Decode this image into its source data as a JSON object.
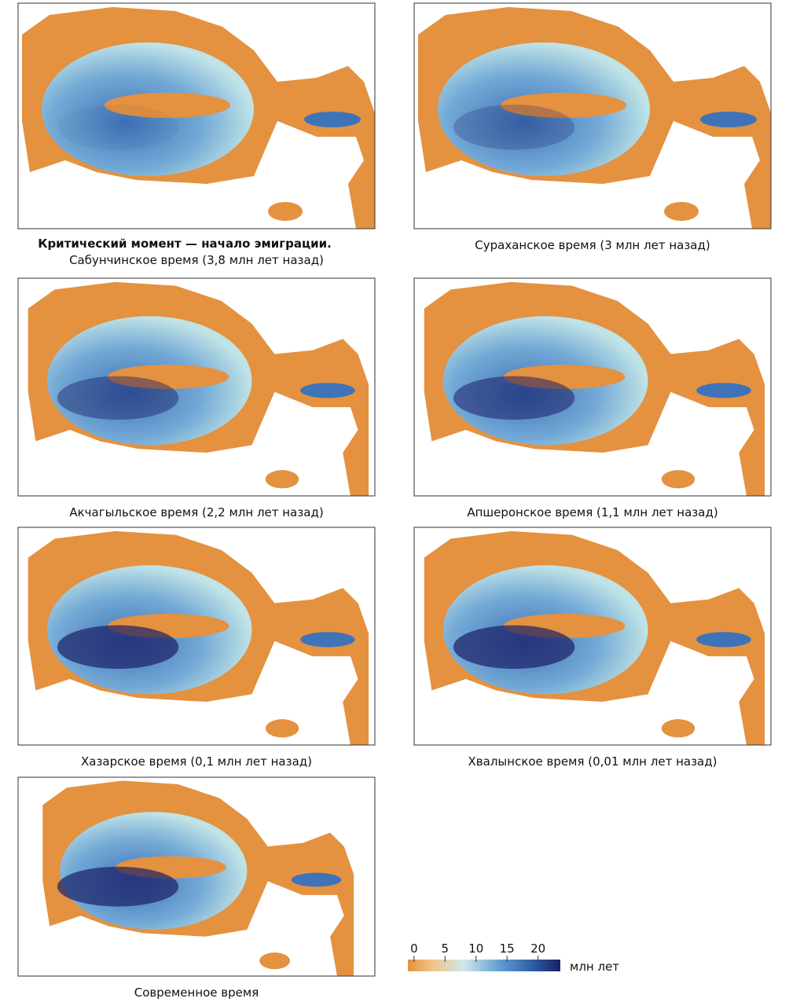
{
  "panels": [
    {
      "title": "Критический момент — начало эмиграции.",
      "caption": "Сабунчинское время (3,8 млн лет назад)"
    },
    {
      "caption": "Сураханское время (3 млн лет назад)"
    },
    {
      "caption": "Акчагыльское время (2,2 млн лет назад)"
    },
    {
      "caption": "Апшеронское время (1,1 млн лет назад)"
    },
    {
      "caption": "Хазарское время (0,1 млн лет назад)"
    },
    {
      "caption": "Хвалынское время (0,01 млн лет назад)"
    },
    {
      "caption": "Современное время"
    }
  ],
  "colorbar": {
    "unit": "млн лет",
    "lim": [
      -1,
      23.6
    ],
    "ticks": [
      0,
      5,
      10,
      15,
      20
    ],
    "stops": [
      {
        "value": -1,
        "color": "#e8923a"
      },
      {
        "value": 3,
        "color": "#f0c48a"
      },
      {
        "value": 8,
        "color": "#cfe8ea"
      },
      {
        "value": 14,
        "color": "#5f9bd0"
      },
      {
        "value": 19,
        "color": "#2f5fa8"
      },
      {
        "value": 23.6,
        "color": "#1b1f66"
      }
    ]
  }
}
